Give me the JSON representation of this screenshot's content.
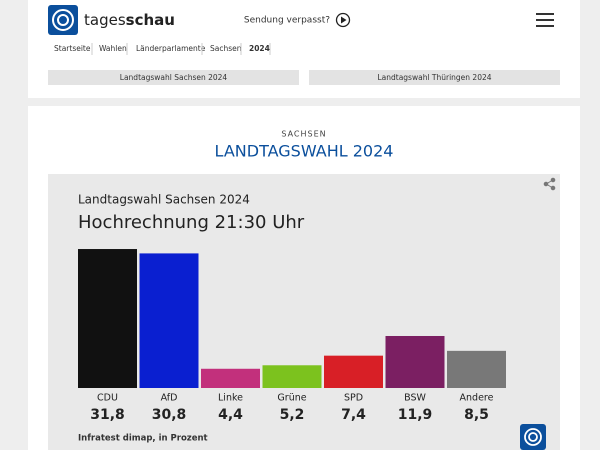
{
  "header": {
    "brand_left": "tages",
    "brand_right": "schau",
    "missed": "Sendung verpasst?"
  },
  "breadcrumbs": [
    "Startseite",
    "Wahlen",
    "Länderparlamente",
    "Sachsen",
    "2024"
  ],
  "tabs": [
    "Landtagswahl Sachsen 2024",
    "Landtagswahl Thüringen 2024"
  ],
  "section": {
    "kicker": "SACHSEN",
    "title": "LANDTAGSWAHL 2024"
  },
  "chart": {
    "type": "bar",
    "title": "Landtagswahl Sachsen 2024",
    "subtitle": "Hochrechnung 21:30 Uhr",
    "categories": [
      "CDU",
      "AfD",
      "Linke",
      "Grüne",
      "SPD",
      "BSW",
      "Andere"
    ],
    "values": [
      31.8,
      30.8,
      4.4,
      5.2,
      7.4,
      11.9,
      8.5
    ],
    "value_labels": [
      "31,8",
      "30,8",
      "4,4",
      "5,2",
      "7,4",
      "11,9",
      "8,5"
    ],
    "colors": [
      "#111111",
      "#0a1fd0",
      "#c2307c",
      "#7cc21e",
      "#d81f26",
      "#7b1f62",
      "#787878"
    ],
    "source": "Infratest dimap, in Prozent"
  }
}
